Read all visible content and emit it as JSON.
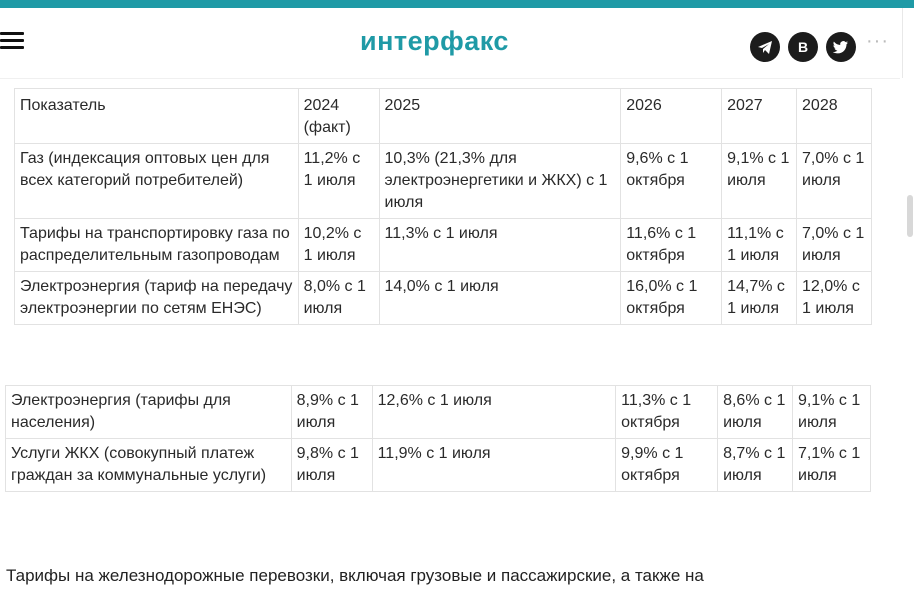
{
  "header": {
    "logo_text": "интерфакс",
    "social": {
      "telegram": "telegram-icon",
      "vk": "В",
      "twitter": "twitter-icon"
    },
    "more": "···"
  },
  "table": {
    "columns": [
      "Показатель",
      "2024 (факт)",
      "2025",
      "2026",
      "2027",
      "2028"
    ],
    "rows": [
      [
        "Газ (индексация оптовых цен для всех категорий потребителей)",
        "11,2% с 1 июля",
        "10,3% (21,3% для электроэнергетики и ЖКХ) с 1 июля",
        "9,6% с 1 октября",
        "9,1% с 1 июля",
        "7,0% с 1 июля"
      ],
      [
        "Тарифы на транспортировку газа по распределительным газопроводам",
        "10,2% с 1 июля",
        "11,3% с 1 июля",
        "11,6% с 1 октября",
        "11,1% с 1 июля",
        "7,0% с 1 июля"
      ],
      [
        "Электроэнергия (тариф на передачу электроэнергии по сетям ЕНЭС)",
        "8,0% с 1 июля",
        "14,0% с 1 июля",
        "16,0% с 1 октября",
        "14,7% с 1 июля",
        "12,0% с 1 июля"
      ],
      [
        "Электроэнергия (тарифы для населения)",
        "8,9% с 1 июля",
        "12,6% с 1 июля",
        "11,3% с 1 октября",
        "8,6% с 1 июля",
        "9,1% с 1 июля"
      ],
      [
        "Услуги ЖКХ (совокупный платеж граждан за коммунальные услуги)",
        "9,8% с 1 июля",
        "11,9% с 1 июля",
        "9,9% с 1 октября",
        "8,7% с 1 июля",
        "7,1% с 1 июля"
      ]
    ]
  },
  "paragraph": "Тарифы на железнодорожные перевозки, включая грузовые и пассажирские, а также на",
  "colors": {
    "brand": "#1f9aa6",
    "icon_bg": "#1c1c1c"
  }
}
